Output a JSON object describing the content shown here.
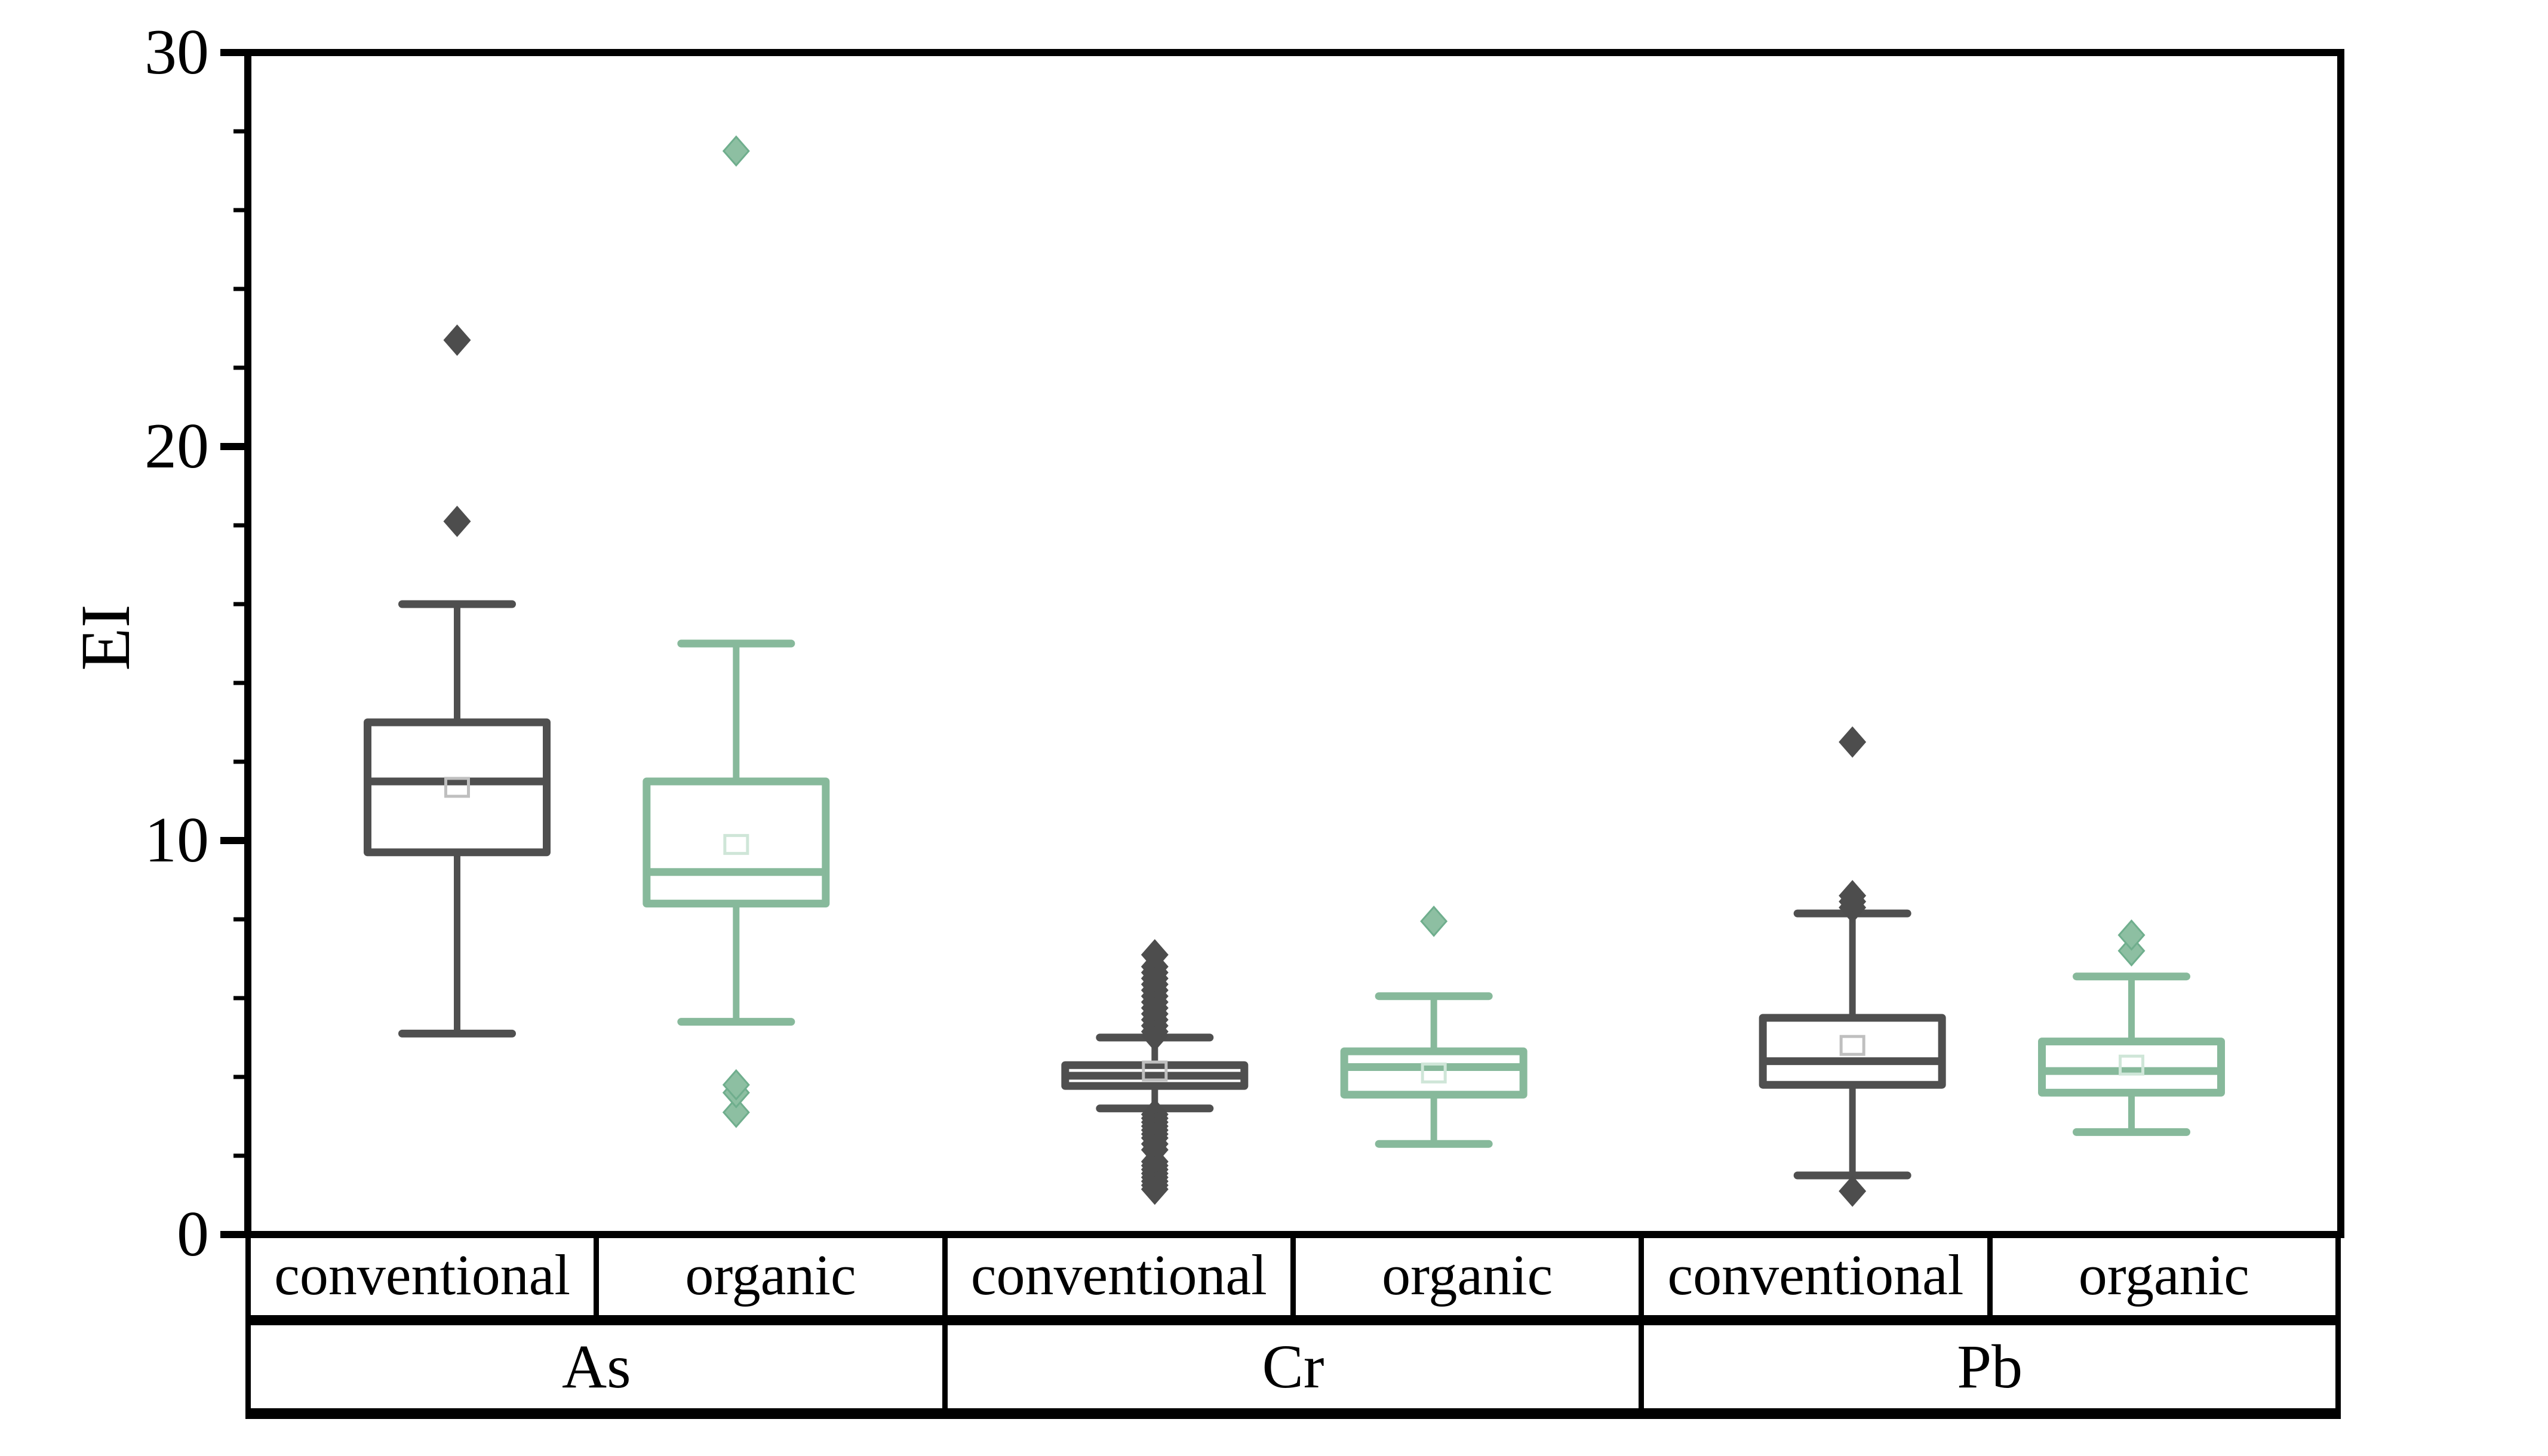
{
  "figure": {
    "ylabel": "EI",
    "ytick_labels": [
      "0",
      "10",
      "20",
      "30"
    ]
  },
  "chart_data": {
    "type": "box",
    "title": "",
    "xlabel": "",
    "ylabel": "EI",
    "ylim": [
      0,
      30
    ],
    "yticks": [
      0,
      10,
      20,
      30
    ],
    "minor_tick_step": 2,
    "grid": false,
    "legend": "none",
    "groups": [
      "As",
      "Cr",
      "Pb"
    ],
    "categories": [
      "conventional",
      "organic"
    ],
    "axis_table": {
      "row1": [
        "conventional",
        "organic",
        "conventional",
        "organic",
        "conventional",
        "organic"
      ],
      "row2": [
        "As",
        "Cr",
        "Pb"
      ]
    },
    "colors": {
      "conventional_line": "#4f4f4f",
      "organic_line": "#87b99b",
      "conventional_outlier_fill": "#4d4d4d",
      "organic_outlier_fill": "#8dbfa2",
      "organic_outlier_edge": "#6fae8d",
      "conventional_mean_marker": "#bfbfbf",
      "organic_mean_marker": "#cfe6d8",
      "axis": "#000000",
      "box_fill": "#ffffff"
    },
    "series": [
      {
        "group": "As",
        "category": "conventional",
        "whisker_low": 5.1,
        "q1": 9.7,
        "median": 11.5,
        "q3": 13.0,
        "whisker_high": 16.0,
        "mean": 11.35,
        "outliers": [
          18.1,
          22.7
        ]
      },
      {
        "group": "As",
        "category": "organic",
        "whisker_low": 5.4,
        "q1": 8.4,
        "median": 9.2,
        "q3": 11.5,
        "whisker_high": 15.0,
        "mean": 9.9,
        "outliers": [
          3.1,
          3.6,
          3.8,
          27.5
        ]
      },
      {
        "group": "Cr",
        "category": "conventional",
        "whisker_low": 3.2,
        "q1": 3.77,
        "median": 4.03,
        "q3": 4.3,
        "whisker_high": 5.0,
        "mean": 4.15,
        "outliers": [
          5.05,
          5.15,
          5.3,
          5.45,
          5.6,
          5.75,
          5.9,
          6.05,
          6.2,
          6.35,
          6.5,
          6.65,
          6.8,
          7.1,
          3.05,
          2.95,
          2.85,
          2.75,
          2.65,
          2.55,
          2.45,
          2.3,
          2.15,
          1.85,
          1.75,
          1.65,
          1.55,
          1.45,
          1.35,
          1.25,
          1.15
        ]
      },
      {
        "group": "Cr",
        "category": "organic",
        "whisker_low": 2.3,
        "q1": 3.55,
        "median": 4.25,
        "q3": 4.65,
        "whisker_high": 6.05,
        "mean": 4.1,
        "outliers": [
          7.95
        ]
      },
      {
        "group": "Pb",
        "category": "conventional",
        "whisker_low": 1.5,
        "q1": 3.8,
        "median": 4.4,
        "q3": 5.5,
        "whisker_high": 8.15,
        "mean": 4.8,
        "outliers": [
          8.3,
          8.45,
          8.6,
          12.5,
          1.1
        ]
      },
      {
        "group": "Pb",
        "category": "organic",
        "whisker_low": 2.6,
        "q1": 3.6,
        "median": 4.15,
        "q3": 4.9,
        "whisker_high": 6.55,
        "mean": 4.3,
        "outliers": [
          7.2,
          7.6
        ]
      }
    ]
  }
}
